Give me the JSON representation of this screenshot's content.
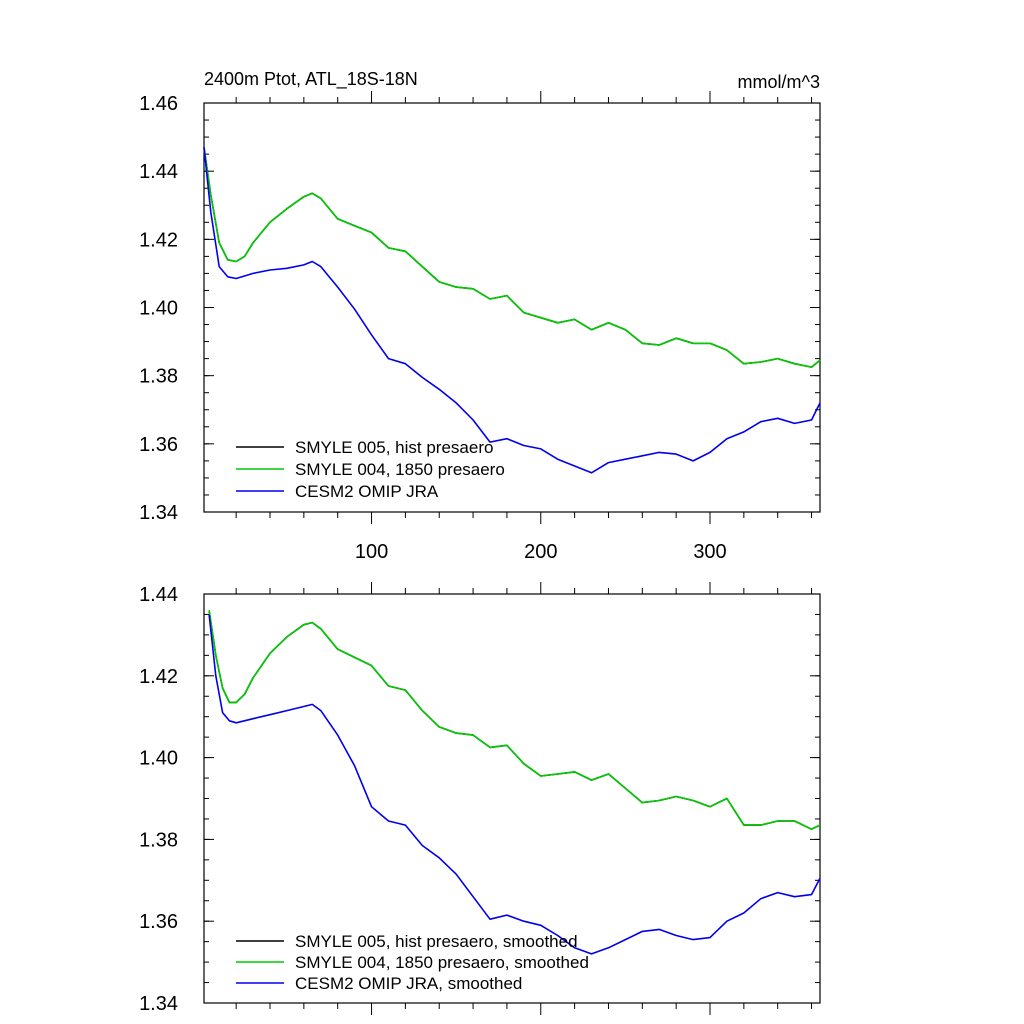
{
  "colors": {
    "hist": "#000000",
    "pre1850": "#00cc00",
    "omip": "#0000ee"
  },
  "chart_data": [
    {
      "type": "line",
      "title": "2400m Ptot, ATL_18S-18N",
      "units": "mmol/m^3",
      "xlim": [
        1,
        365
      ],
      "ylim": [
        1.34,
        1.46
      ],
      "xticks": [
        100,
        200,
        300
      ],
      "yticks": [
        1.34,
        1.36,
        1.38,
        1.4,
        1.42,
        1.44,
        1.46
      ],
      "ytick_labels": [
        "1.34",
        "1.36",
        "1.38",
        "1.40",
        "1.42",
        "1.44",
        "1.46"
      ],
      "legend_position": "bottom-left",
      "series": [
        {
          "name": "SMYLE 005, hist presaero",
          "color": "#000000",
          "x": [
            1,
            5,
            10,
            15,
            20,
            25,
            30,
            40,
            50,
            60,
            65,
            70,
            80,
            90,
            100,
            110,
            120,
            130,
            140,
            150,
            160,
            170,
            180,
            190,
            200,
            210,
            220,
            230,
            240,
            250,
            260,
            270,
            280,
            290,
            300,
            310,
            320,
            330,
            340,
            350,
            360,
            365
          ],
          "y": [
            1.447,
            1.433,
            1.419,
            1.414,
            1.4135,
            1.415,
            1.419,
            1.425,
            1.429,
            1.4325,
            1.4335,
            1.432,
            1.426,
            1.424,
            1.422,
            1.4175,
            1.4165,
            1.412,
            1.4075,
            1.406,
            1.4055,
            1.4025,
            1.4035,
            1.3985,
            1.397,
            1.3955,
            1.3965,
            1.3935,
            1.3955,
            1.3935,
            1.3895,
            1.389,
            1.391,
            1.3895,
            1.3895,
            1.3875,
            1.3835,
            1.384,
            1.385,
            1.3835,
            1.3825,
            1.3845
          ]
        },
        {
          "name": "SMYLE 004, 1850 presaero",
          "color": "#00cc00",
          "x": [
            1,
            5,
            10,
            15,
            20,
            25,
            30,
            40,
            50,
            60,
            65,
            70,
            80,
            90,
            100,
            110,
            120,
            130,
            140,
            150,
            160,
            170,
            180,
            190,
            200,
            210,
            220,
            230,
            240,
            250,
            260,
            270,
            280,
            290,
            300,
            310,
            320,
            330,
            340,
            350,
            360,
            365
          ],
          "y": [
            1.447,
            1.433,
            1.419,
            1.414,
            1.4135,
            1.415,
            1.419,
            1.425,
            1.429,
            1.4325,
            1.4335,
            1.432,
            1.426,
            1.424,
            1.422,
            1.4175,
            1.4165,
            1.412,
            1.4075,
            1.406,
            1.4055,
            1.4025,
            1.4035,
            1.3985,
            1.397,
            1.3955,
            1.3965,
            1.3935,
            1.3955,
            1.3935,
            1.3895,
            1.389,
            1.391,
            1.3895,
            1.3895,
            1.3875,
            1.3835,
            1.384,
            1.385,
            1.3835,
            1.3825,
            1.3845
          ]
        },
        {
          "name": "CESM2 OMIP JRA",
          "color": "#0000ee",
          "x": [
            1,
            5,
            10,
            15,
            20,
            30,
            40,
            50,
            60,
            65,
            70,
            80,
            90,
            100,
            110,
            120,
            130,
            140,
            150,
            160,
            170,
            180,
            190,
            200,
            210,
            220,
            230,
            240,
            250,
            260,
            270,
            280,
            290,
            300,
            310,
            320,
            330,
            340,
            350,
            360,
            365
          ],
          "y": [
            1.447,
            1.428,
            1.412,
            1.409,
            1.4085,
            1.41,
            1.411,
            1.4115,
            1.4125,
            1.4135,
            1.412,
            1.406,
            1.3995,
            1.392,
            1.385,
            1.3835,
            1.3795,
            1.376,
            1.372,
            1.367,
            1.3605,
            1.3615,
            1.3595,
            1.3585,
            1.3555,
            1.3535,
            1.3515,
            1.3545,
            1.3555,
            1.3565,
            1.3575,
            1.357,
            1.355,
            1.3575,
            1.3615,
            1.3635,
            1.3665,
            1.3675,
            1.366,
            1.367,
            1.372
          ]
        }
      ]
    },
    {
      "type": "line",
      "xlim": [
        1,
        365
      ],
      "ylim": [
        1.34,
        1.44
      ],
      "xticks": [
        100,
        200,
        300
      ],
      "yticks": [
        1.34,
        1.36,
        1.38,
        1.4,
        1.42,
        1.44
      ],
      "ytick_labels": [
        "1.34",
        "1.36",
        "1.38",
        "1.40",
        "1.42",
        "1.44"
      ],
      "legend_position": "bottom-left",
      "series": [
        {
          "name": "SMYLE 005, hist presaero, smoothed",
          "color": "#000000",
          "x": [
            4,
            8,
            12,
            16,
            20,
            25,
            30,
            40,
            50,
            60,
            65,
            70,
            80,
            90,
            100,
            110,
            120,
            130,
            140,
            150,
            160,
            170,
            180,
            190,
            200,
            210,
            220,
            230,
            240,
            250,
            260,
            270,
            280,
            290,
            300,
            310,
            320,
            330,
            340,
            350,
            360,
            365
          ],
          "y": [
            1.436,
            1.425,
            1.417,
            1.4135,
            1.4135,
            1.4155,
            1.4195,
            1.4255,
            1.4295,
            1.4325,
            1.433,
            1.4315,
            1.4265,
            1.4245,
            1.4225,
            1.4175,
            1.4165,
            1.4115,
            1.4075,
            1.406,
            1.4055,
            1.4025,
            1.403,
            1.3985,
            1.3955,
            1.396,
            1.3965,
            1.3945,
            1.396,
            1.3925,
            1.389,
            1.3895,
            1.3905,
            1.3895,
            1.388,
            1.39,
            1.3835,
            1.3835,
            1.3845,
            1.3845,
            1.3825,
            1.3835
          ]
        },
        {
          "name": "SMYLE 004, 1850 presaero, smoothed",
          "color": "#00cc00",
          "x": [
            4,
            8,
            12,
            16,
            20,
            25,
            30,
            40,
            50,
            60,
            65,
            70,
            80,
            90,
            100,
            110,
            120,
            130,
            140,
            150,
            160,
            170,
            180,
            190,
            200,
            210,
            220,
            230,
            240,
            250,
            260,
            270,
            280,
            290,
            300,
            310,
            320,
            330,
            340,
            350,
            360,
            365
          ],
          "y": [
            1.436,
            1.425,
            1.417,
            1.4135,
            1.4135,
            1.4155,
            1.4195,
            1.4255,
            1.4295,
            1.4325,
            1.433,
            1.4315,
            1.4265,
            1.4245,
            1.4225,
            1.4175,
            1.4165,
            1.4115,
            1.4075,
            1.406,
            1.4055,
            1.4025,
            1.403,
            1.3985,
            1.3955,
            1.396,
            1.3965,
            1.3945,
            1.396,
            1.3925,
            1.389,
            1.3895,
            1.3905,
            1.3895,
            1.388,
            1.39,
            1.3835,
            1.3835,
            1.3845,
            1.3845,
            1.3825,
            1.3835
          ]
        },
        {
          "name": "CESM2 OMIP JRA, smoothed",
          "color": "#0000ee",
          "x": [
            4,
            8,
            12,
            16,
            20,
            30,
            40,
            50,
            60,
            65,
            70,
            80,
            90,
            100,
            110,
            120,
            130,
            140,
            150,
            160,
            170,
            180,
            190,
            200,
            210,
            220,
            230,
            240,
            250,
            260,
            270,
            280,
            290,
            300,
            310,
            320,
            330,
            340,
            350,
            360,
            365
          ],
          "y": [
            1.435,
            1.42,
            1.411,
            1.409,
            1.4085,
            1.4095,
            1.4105,
            1.4115,
            1.4125,
            1.413,
            1.4115,
            1.4055,
            1.398,
            1.388,
            1.3845,
            1.3835,
            1.3785,
            1.3755,
            1.3715,
            1.366,
            1.3605,
            1.3615,
            1.36,
            1.359,
            1.3565,
            1.3535,
            1.352,
            1.3535,
            1.3555,
            1.3575,
            1.358,
            1.3565,
            1.3555,
            1.356,
            1.36,
            1.362,
            1.3655,
            1.367,
            1.366,
            1.3665,
            1.3705
          ]
        }
      ]
    }
  ]
}
